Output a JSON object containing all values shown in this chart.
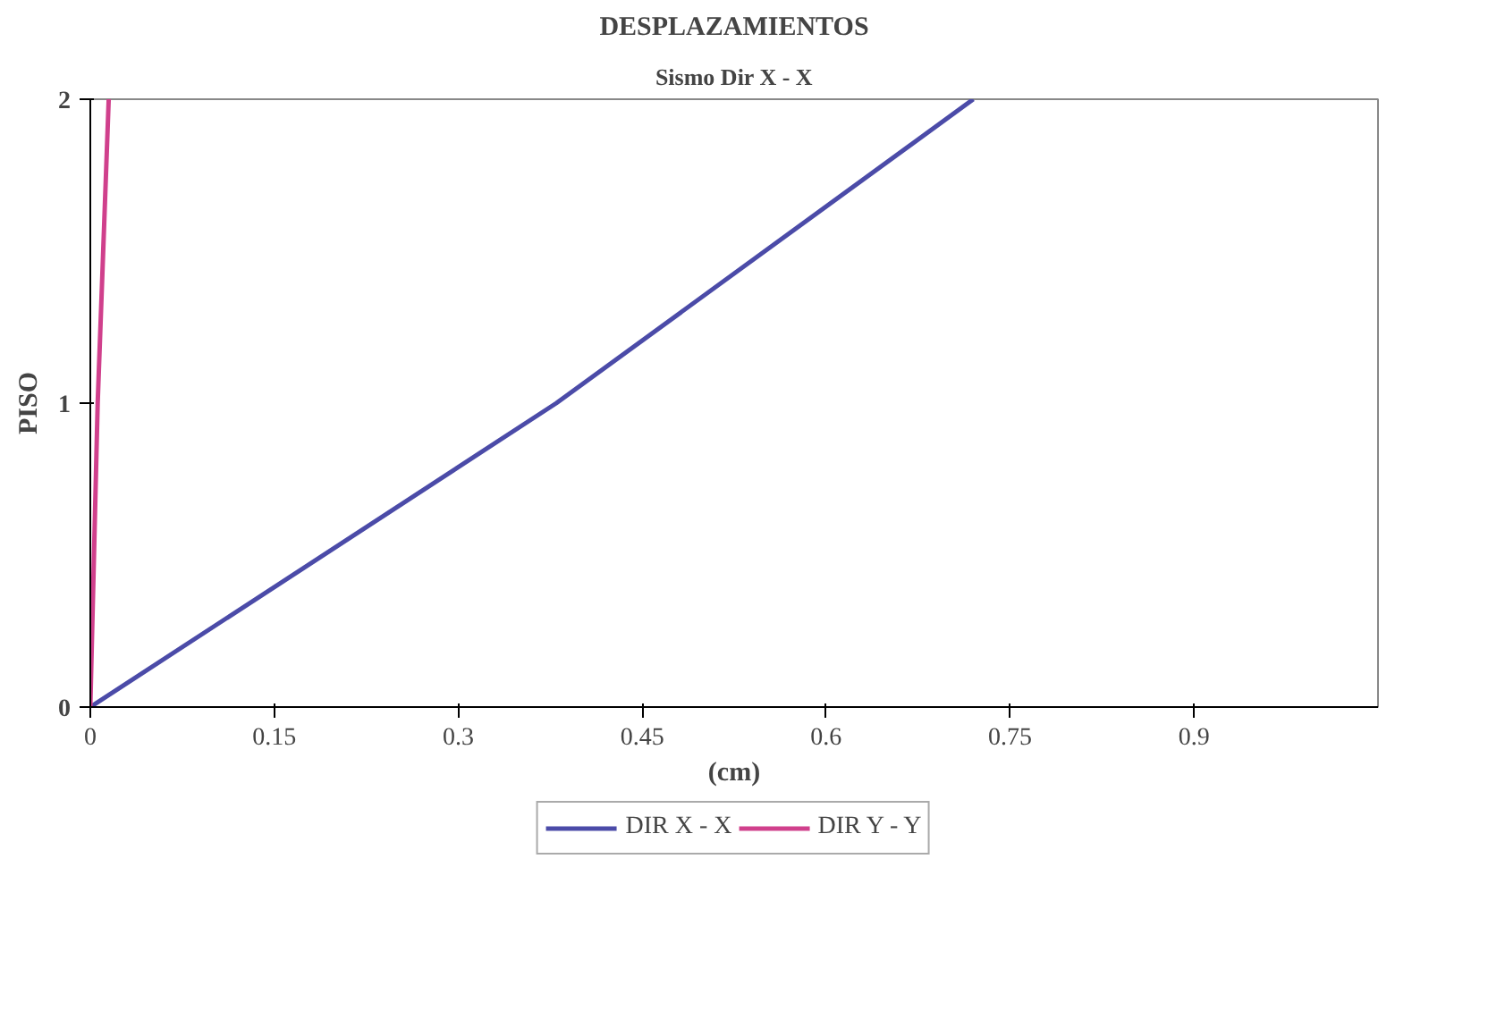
{
  "chart_data": {
    "type": "line",
    "title": "DESPLAZAMIENTOS",
    "subtitle": "Sismo Dir X - X",
    "xlabel": "(cm)",
    "ylabel": "PISO",
    "xlim": [
      0,
      1.05
    ],
    "xticks": [
      0,
      0.15,
      0.3,
      0.45,
      0.6,
      0.75,
      0.9
    ],
    "ylim": [
      0,
      2
    ],
    "yticks": [
      0,
      1,
      2
    ],
    "series": [
      {
        "name": "DIR X - X",
        "color": "#4b4ba8",
        "x": [
          0,
          0.38,
          0.72
        ],
        "values": [
          0,
          1,
          2
        ]
      },
      {
        "name": "DIR Y - Y",
        "color": "#d0408c",
        "x": [
          0,
          0.006,
          0.015
        ],
        "values": [
          0,
          1,
          2
        ]
      }
    ],
    "grid": false,
    "legend": "bottom",
    "marker": "none",
    "line_style": "solid"
  }
}
